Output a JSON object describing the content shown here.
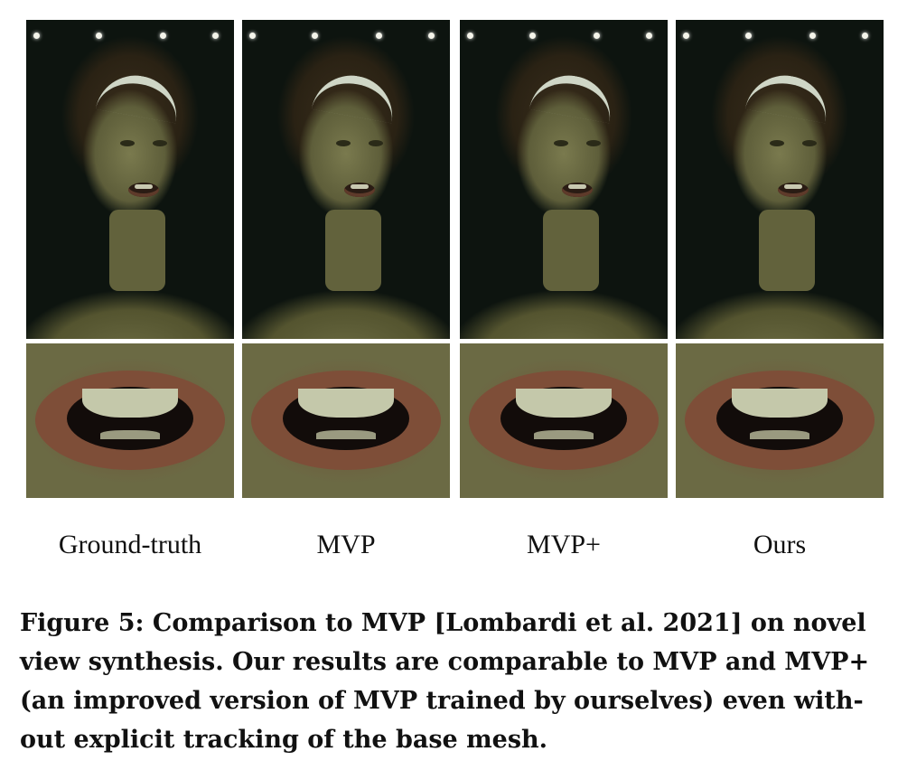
{
  "figure": {
    "columns": [
      {
        "label": "Ground-truth"
      },
      {
        "label": "MVP"
      },
      {
        "label": "MVP+"
      },
      {
        "label": "Ours"
      }
    ],
    "caption_lines": [
      "Figure 5: Comparison to MVP [Lombardi et al. 2021] on novel",
      "view synthesis. Our results are comparable to MVP and MVP+",
      "(an improved version of MVP trained by ourselves) even with-",
      "out explicit tracking of the base mesh."
    ]
  }
}
